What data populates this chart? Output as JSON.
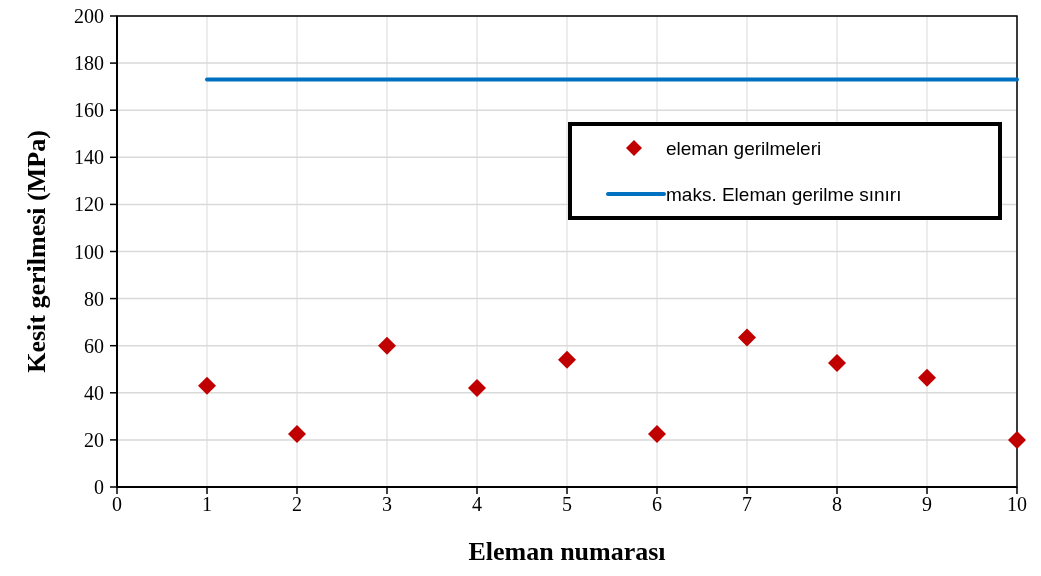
{
  "chart_data": {
    "type": "scatter",
    "xlabel": "Eleman numarası",
    "ylabel": "Kesit gerilmesi (MPa)",
    "xlim": [
      0,
      10
    ],
    "xticks": [
      0,
      1,
      2,
      3,
      4,
      5,
      6,
      7,
      8,
      9,
      10
    ],
    "ylim": [
      0,
      200
    ],
    "yticks": [
      0,
      20,
      40,
      60,
      80,
      100,
      120,
      140,
      160,
      180,
      200
    ],
    "grid": true,
    "legend": "top right",
    "series": [
      {
        "name": "eleman gerilmeleri",
        "marker": "diamond",
        "color": "#c00000",
        "x": [
          1,
          2,
          3,
          4,
          5,
          6,
          7,
          8,
          9,
          10
        ],
        "values": [
          43,
          22.5,
          60,
          42,
          54,
          22.5,
          63.5,
          52.7,
          46.4,
          20
        ]
      },
      {
        "name": "maks. Eleman gerilme sınırı",
        "type": "line",
        "marker": "none",
        "line_style": "solid",
        "color": "#0070c0",
        "x": [
          1,
          10
        ],
        "values": [
          173,
          173
        ]
      }
    ]
  }
}
